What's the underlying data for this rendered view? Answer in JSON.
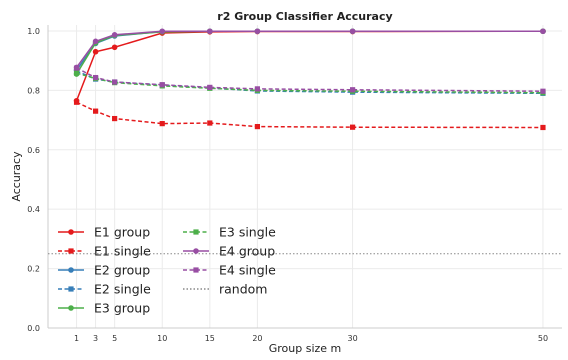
{
  "chart_data": {
    "type": "line",
    "title": "r2 Group Classifier Accuracy",
    "xlabel": "Group size m",
    "ylabel": "Accuracy",
    "x": [
      1,
      3,
      5,
      10,
      15,
      20,
      30,
      50
    ],
    "xticks": [
      1,
      3,
      5,
      10,
      15,
      20,
      30,
      50
    ],
    "yticks": [
      0.0,
      0.2,
      0.4,
      0.6,
      0.8,
      1.0
    ],
    "ytick_labels": [
      "0.0",
      "0.2",
      "0.4",
      "0.6",
      "0.8",
      "1.0"
    ],
    "xlim": [
      -2,
      52
    ],
    "ylim": [
      0.0,
      1.02
    ],
    "grid": true,
    "legend_placement": "lower-left",
    "series": [
      {
        "name": "E1 group",
        "color": "#e41a1c",
        "style": "solid",
        "marker": "circle",
        "values": [
          0.765,
          0.93,
          0.945,
          0.993,
          0.997,
          0.998,
          0.998,
          0.999
        ]
      },
      {
        "name": "E1 single",
        "color": "#e41a1c",
        "style": "dashed",
        "marker": "square",
        "values": [
          0.76,
          0.73,
          0.705,
          0.688,
          0.69,
          0.678,
          0.676,
          0.675
        ]
      },
      {
        "name": "E2 group",
        "color": "#377eb8",
        "style": "solid",
        "marker": "circle",
        "values": [
          0.868,
          0.958,
          0.983,
          0.998,
          0.999,
          0.999,
          0.999,
          0.999
        ]
      },
      {
        "name": "E2 single",
        "color": "#377eb8",
        "style": "dashed",
        "marker": "square",
        "values": [
          0.865,
          0.838,
          0.828,
          0.818,
          0.808,
          0.798,
          0.794,
          0.79
        ]
      },
      {
        "name": "E3 group",
        "color": "#4daf4a",
        "style": "solid",
        "marker": "circle",
        "values": [
          0.855,
          0.96,
          0.985,
          0.997,
          0.999,
          0.999,
          0.999,
          0.999
        ]
      },
      {
        "name": "E3 single",
        "color": "#4daf4a",
        "style": "dashed",
        "marker": "square",
        "values": [
          0.858,
          0.84,
          0.826,
          0.815,
          0.807,
          0.8,
          0.797,
          0.792
        ]
      },
      {
        "name": "E4 group",
        "color": "#984ea3",
        "style": "solid",
        "marker": "circle",
        "values": [
          0.877,
          0.965,
          0.987,
          0.999,
          0.999,
          0.999,
          0.999,
          0.999
        ]
      },
      {
        "name": "E4 single",
        "color": "#984ea3",
        "style": "dashed",
        "marker": "square",
        "values": [
          0.875,
          0.843,
          0.828,
          0.819,
          0.81,
          0.805,
          0.802,
          0.797
        ]
      }
    ],
    "reference_lines": [
      {
        "name": "random",
        "color": "#888888",
        "style": "dotted",
        "y": 0.25
      }
    ]
  }
}
